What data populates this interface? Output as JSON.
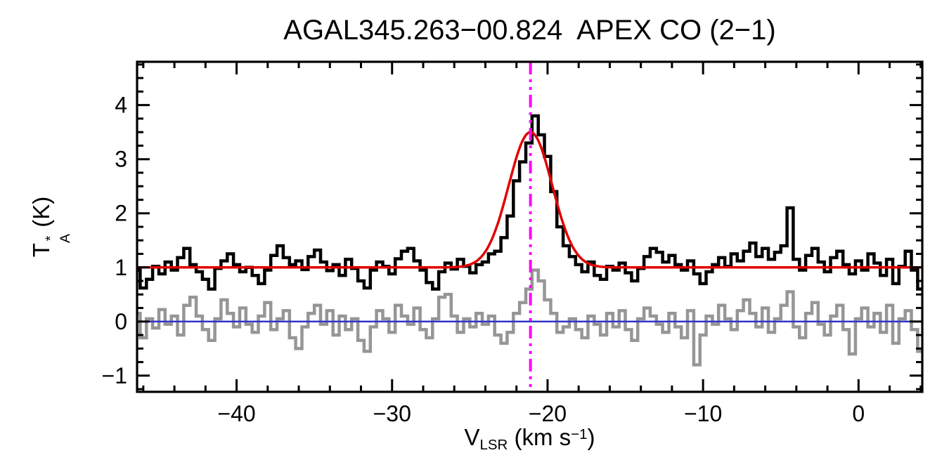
{
  "title": "AGAL345.263−00.824  APEX CO (2−1)",
  "chart_data": {
    "type": "line",
    "description": "APEX CO(2-1) spectrum with Gaussian fit, residual, zero level and LSR velocity marker",
    "xlabel": {
      "base": "V",
      "sub": "LSR",
      "mid": " (km s",
      "sup": "−1",
      "end": ")"
    },
    "ylabel": {
      "base": "T",
      "sup": "*",
      "sub": "A",
      "end": " (K)"
    },
    "xlim": [
      -46.4,
      4.1
    ],
    "ylim": [
      -1.3,
      4.8
    ],
    "grid": false,
    "legend": "none",
    "xticks": {
      "major": [
        -40,
        -30,
        -20,
        -10,
        0
      ],
      "labels": [
        "−40",
        "−30",
        "−20",
        "−10",
        "0"
      ],
      "minor_step": 2
    },
    "yticks": {
      "major": [
        -1,
        0,
        1,
        2,
        3,
        4
      ],
      "labels": [
        "−1",
        "0",
        "1",
        "2",
        "3",
        "4"
      ],
      "minor_step": 0.25
    },
    "x_start": -46.4,
    "channel_width": 0.4,
    "series": [
      {
        "name": "residual",
        "style": "histogram",
        "color": "#969696",
        "width": 4.5,
        "values": [
          0.15,
          -0.3,
          0.05,
          -0.12,
          0.22,
          -0.05,
          0.1,
          -0.25,
          0.3,
          0.45,
          0.1,
          -0.15,
          -0.35,
          0.05,
          0.4,
          0.15,
          -0.1,
          0.25,
          -0.05,
          -0.2,
          0.1,
          0.35,
          -0.15,
          0.05,
          0.2,
          -0.3,
          -0.5,
          -0.1,
          0.15,
          0.3,
          -0.05,
          0.2,
          -0.25,
          0.1,
          -0.15,
          0.05,
          -0.35,
          -0.55,
          -0.1,
          0.2,
          0.05,
          -0.2,
          0.3,
          0.1,
          -0.05,
          0.25,
          -0.15,
          -0.3,
          0.05,
          0.45,
          0.5,
          0.1,
          -0.2,
          0.05,
          -0.1,
          0.15,
          -0.05,
          0.1,
          -0.25,
          -0.4,
          -0.2,
          0.15,
          0.35,
          0.6,
          0.95,
          0.75,
          0.4,
          0.15,
          -0.2,
          -0.1,
          0.05,
          -0.15,
          -0.3,
          0.1,
          -0.05,
          -0.25,
          0.15,
          -0.1,
          0.2,
          -0.15,
          -0.35,
          0.05,
          0.25,
          0.1,
          -0.05,
          -0.2,
          0.15,
          -0.1,
          -0.3,
          0.2,
          -0.8,
          -0.25,
          0.1,
          -0.05,
          0.3,
          0.05,
          -0.15,
          0.2,
          0.4,
          0.15,
          -0.1,
          0.25,
          -0.2,
          0.05,
          0.3,
          0.55,
          -0.1,
          -0.3,
          0.15,
          0.35,
          -0.05,
          -0.25,
          0.1,
          0.3,
          -0.15,
          -0.6,
          0.05,
          0.25,
          -0.1,
          0.15,
          -0.2,
          0.3,
          -0.4,
          0.05,
          0.2,
          -0.15,
          -0.55
        ]
      },
      {
        "name": "zero-line",
        "style": "hline",
        "color": "#3333cc",
        "width": 2.5,
        "y": 0
      },
      {
        "name": "spectrum",
        "style": "histogram",
        "color": "#000000",
        "width": 4.5,
        "values": [
          0.95,
          0.62,
          0.78,
          1.02,
          0.88,
          1.1,
          0.95,
          1.18,
          1.35,
          1.05,
          0.92,
          0.78,
          0.6,
          0.98,
          1.12,
          1.25,
          1.05,
          0.92,
          1.0,
          0.85,
          0.7,
          0.95,
          1.22,
          1.4,
          1.18,
          1.05,
          1.12,
          0.96,
          1.2,
          1.32,
          1.1,
          0.94,
          1.05,
          0.85,
          1.15,
          0.98,
          0.75,
          0.62,
          0.95,
          1.1,
          1.02,
          0.88,
          1.16,
          1.3,
          1.35,
          1.12,
          0.95,
          0.72,
          0.6,
          0.92,
          1.08,
          0.97,
          1.15,
          1.02,
          0.9,
          1.05,
          1.1,
          1.25,
          1.3,
          1.55,
          1.95,
          2.6,
          2.95,
          3.3,
          3.8,
          3.45,
          3.05,
          2.4,
          1.75,
          1.4,
          1.2,
          1.05,
          0.92,
          1.1,
          0.85,
          0.78,
          1.02,
          0.95,
          1.08,
          0.9,
          0.75,
          0.98,
          1.2,
          1.35,
          1.28,
          1.1,
          1.22,
          1.05,
          0.95,
          1.12,
          0.88,
          0.7,
          0.92,
          1.05,
          1.18,
          1.02,
          1.25,
          1.12,
          1.3,
          1.45,
          1.2,
          1.35,
          1.15,
          1.28,
          1.4,
          2.1,
          1.15,
          0.95,
          1.22,
          1.35,
          1.1,
          0.92,
          1.18,
          1.3,
          1.05,
          0.88,
          1.12,
          0.95,
          1.25,
          1.08,
          0.85,
          1.15,
          0.7,
          1.02,
          1.3,
          0.95,
          0.6
        ]
      },
      {
        "name": "gaussian-fit",
        "style": "gauss",
        "color": "#e00000",
        "width": 3.5,
        "params": {
          "baseline": 1.0,
          "amplitude": 2.5,
          "center": -21.1,
          "sigma": 1.4
        }
      },
      {
        "name": "vlsr-marker",
        "style": "vline",
        "color": "#ff00ff",
        "width": 4,
        "x": -21.1,
        "dash": "18,7,4,7,4,7"
      }
    ]
  }
}
